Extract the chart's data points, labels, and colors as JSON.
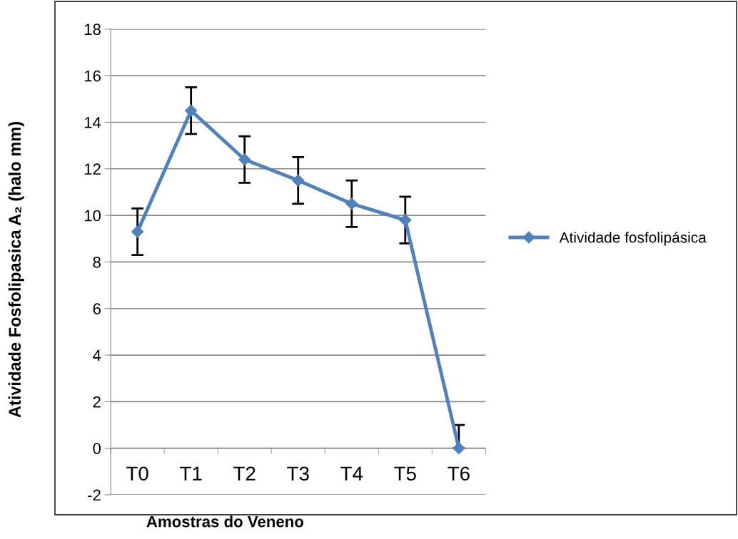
{
  "chart_data": {
    "type": "line",
    "xlabel": "Amostras do Veneno",
    "ylabel": "Atividade Fosfolipasica A₂ (halo mm)",
    "categories": [
      "T0",
      "T1",
      "T2",
      "T3",
      "T4",
      "T5",
      "T6"
    ],
    "series": [
      {
        "name": "Atividade fosfolipásica",
        "color": "#4f81bd",
        "values": [
          9.3,
          14.5,
          12.4,
          11.5,
          10.5,
          9.8,
          0
        ],
        "errors": [
          1,
          1,
          1,
          1,
          1,
          1,
          [
            0,
            1
          ]
        ]
      }
    ],
    "ylim": [
      -2,
      18
    ],
    "yticks": [
      -2,
      0,
      2,
      4,
      6,
      8,
      10,
      12,
      14,
      16,
      18
    ],
    "grid": "y",
    "legend": "right",
    "marker": "diamond",
    "line_style": "solid"
  }
}
